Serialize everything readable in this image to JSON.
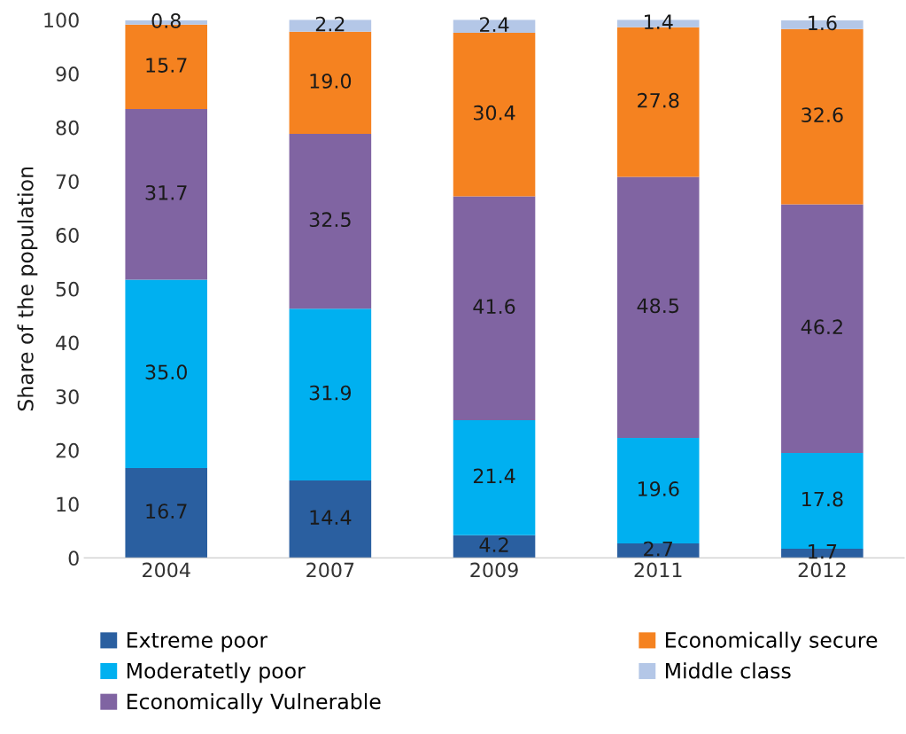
{
  "chart_data": {
    "type": "bar",
    "stacked": true,
    "ylabel": "Share of the population",
    "categories": [
      "2004",
      "2007",
      "2009",
      "2011",
      "2012"
    ],
    "series": [
      {
        "name": "Extreme poor",
        "color": "#2a5fa0",
        "values": [
          16.7,
          14.4,
          4.2,
          2.7,
          1.7
        ],
        "value_labels": [
          "16.7",
          "14.4",
          "4.2",
          "2.7",
          "1.7"
        ]
      },
      {
        "name": "Moderatetly poor",
        "color": "#00b0f0",
        "values": [
          35.0,
          31.9,
          21.4,
          19.6,
          17.8
        ],
        "value_labels": [
          "35.0",
          "31.9",
          "21.4",
          "19.6",
          "17.8"
        ]
      },
      {
        "name": "Economically Vulnerable",
        "color": "#8064a2",
        "values": [
          31.7,
          32.5,
          41.6,
          48.5,
          46.2
        ],
        "value_labels": [
          "31.7",
          "32.5",
          "41.6",
          "48.5",
          "46.2"
        ]
      },
      {
        "name": "Economically secure",
        "color": "#f58220",
        "values": [
          15.7,
          19.0,
          30.4,
          27.8,
          32.6
        ],
        "value_labels": [
          "15.7",
          "19.0",
          "30.4",
          "27.8",
          "32.6"
        ]
      },
      {
        "name": "Middle class",
        "color": "#b4c7e7",
        "values": [
          0.8,
          2.2,
          2.4,
          1.4,
          1.6
        ],
        "value_labels": [
          "0.8",
          "2.2",
          "2.4",
          "1.4",
          "1.6"
        ]
      }
    ],
    "ylim": [
      0,
      100
    ],
    "yticks": [
      0,
      10,
      20,
      30,
      40,
      50,
      60,
      70,
      80,
      90,
      100
    ],
    "grid": false,
    "legend": "bottom"
  }
}
